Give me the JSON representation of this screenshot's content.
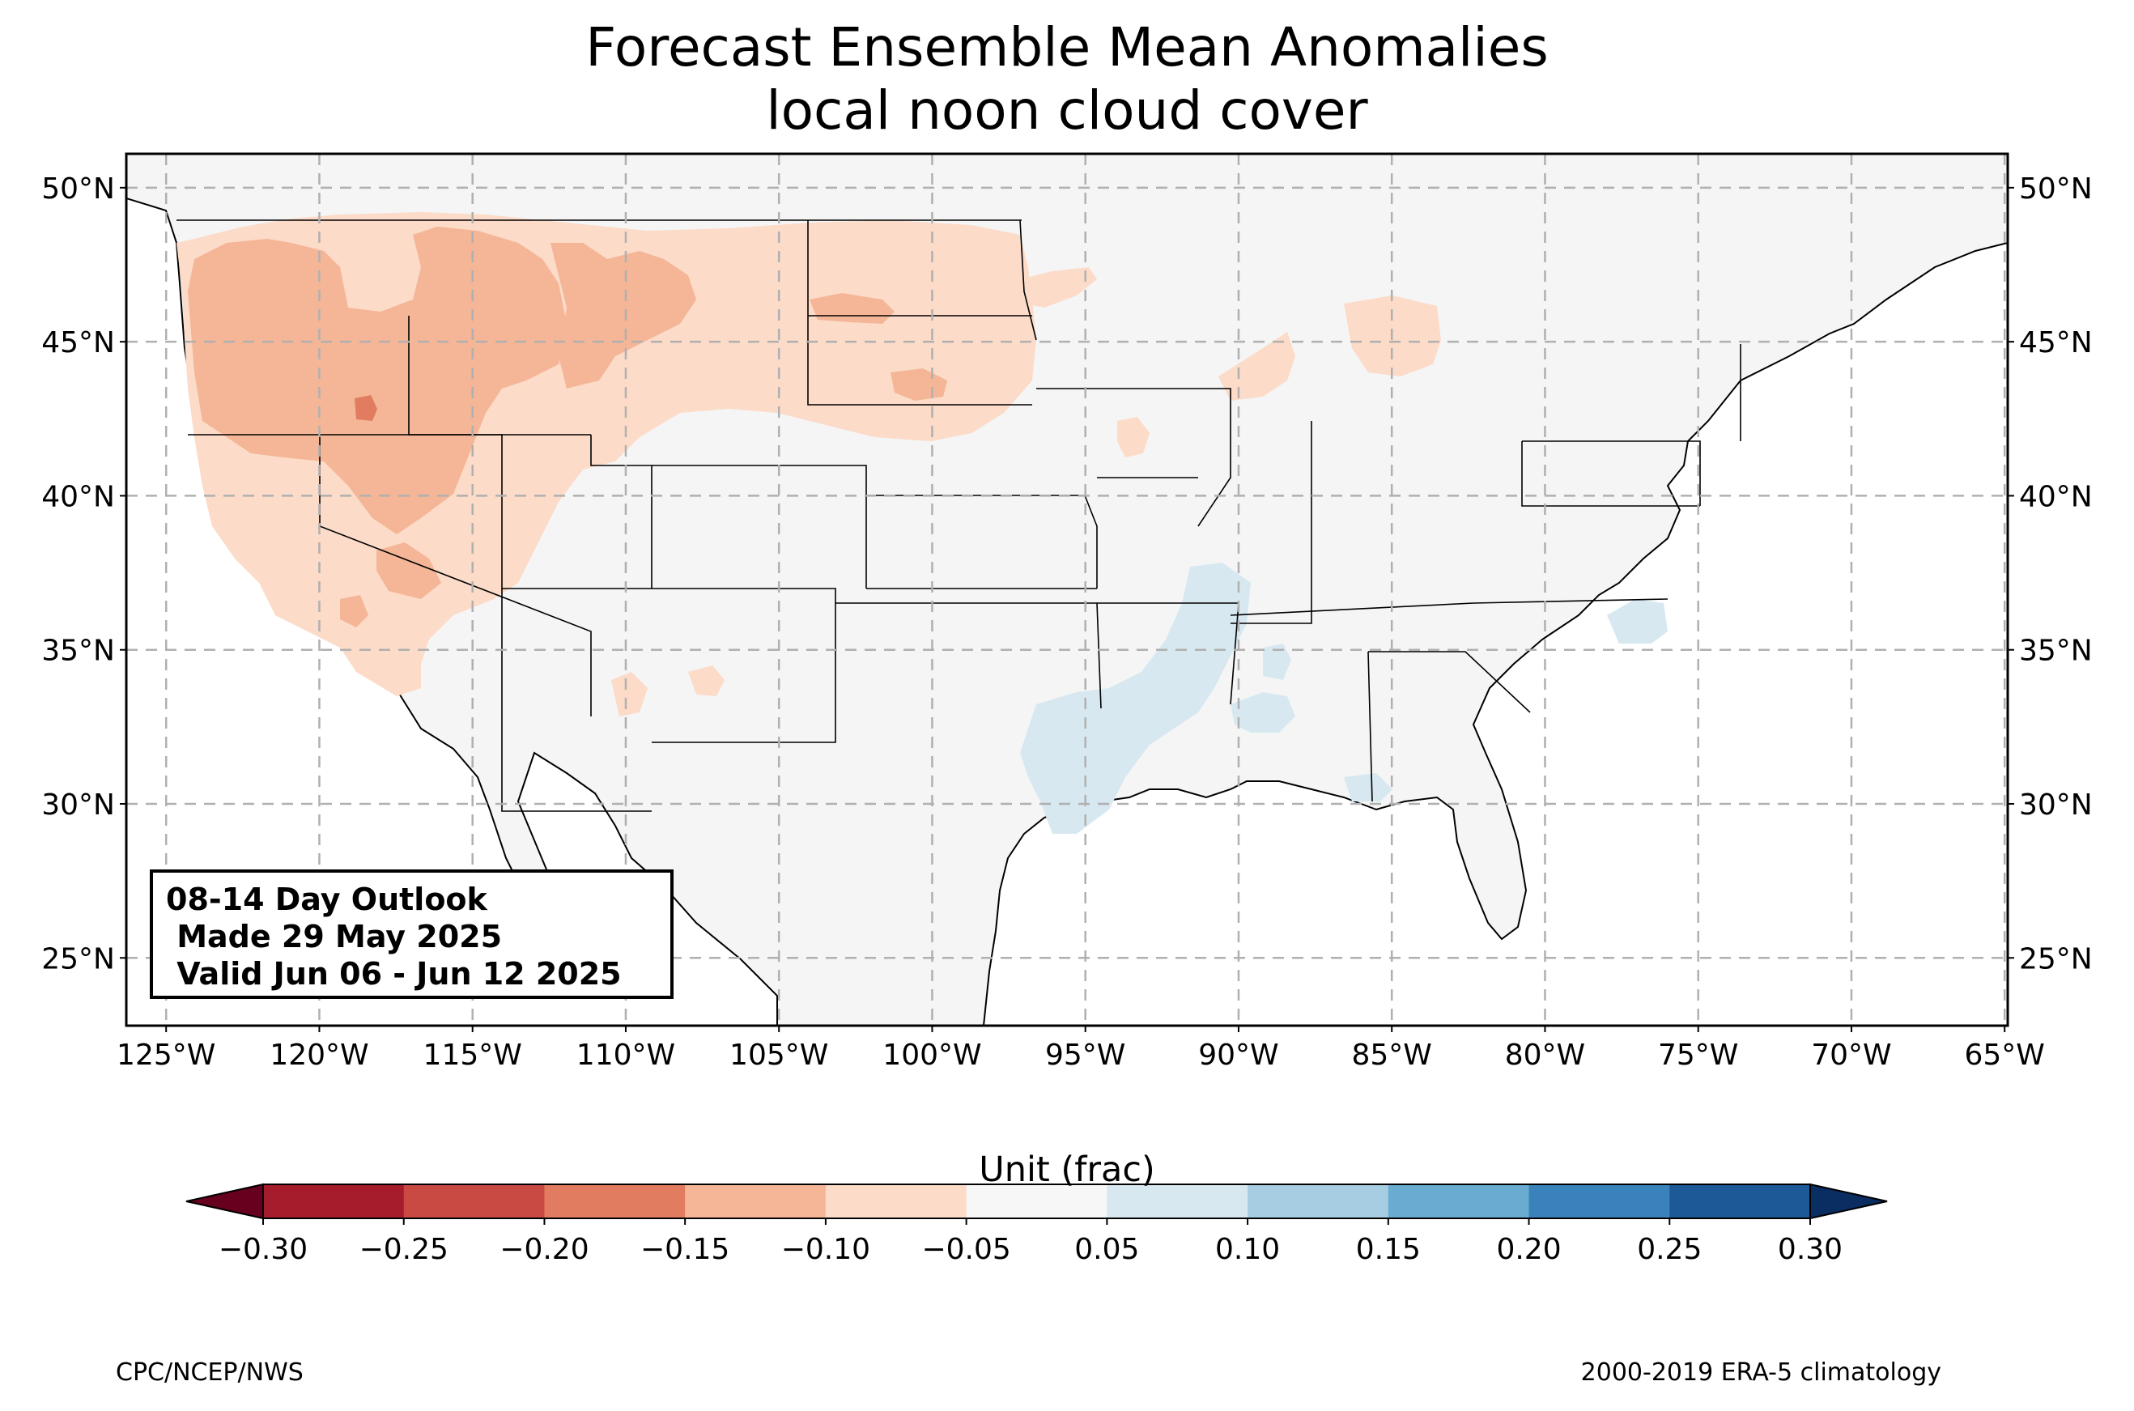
{
  "title": {
    "line1": "Forecast Ensemble Mean Anomalies",
    "line2": "local noon cloud cover"
  },
  "map": {
    "projection": "PlateCarree",
    "lon_range": [
      -126.3,
      -64.9
    ],
    "lat_range": [
      22.8,
      51.1
    ],
    "gridlines": "dashed",
    "lon_ticks": [
      {
        "value": -125,
        "label": "125°W"
      },
      {
        "value": -120,
        "label": "120°W"
      },
      {
        "value": -115,
        "label": "115°W"
      },
      {
        "value": -110,
        "label": "110°W"
      },
      {
        "value": -105,
        "label": "105°W"
      },
      {
        "value": -100,
        "label": "100°W"
      },
      {
        "value": -95,
        "label": "95°W"
      },
      {
        "value": -90,
        "label": "90°W"
      },
      {
        "value": -85,
        "label": "85°W"
      },
      {
        "value": -80,
        "label": "80°W"
      },
      {
        "value": -75,
        "label": "75°W"
      },
      {
        "value": -70,
        "label": "70°W"
      },
      {
        "value": -65,
        "label": "65°W"
      }
    ],
    "lat_ticks": [
      {
        "value": 50,
        "label": "50°N"
      },
      {
        "value": 45,
        "label": "45°N"
      },
      {
        "value": 40,
        "label": "40°N"
      },
      {
        "value": 35,
        "label": "35°N"
      },
      {
        "value": 30,
        "label": "30°N"
      },
      {
        "value": 25,
        "label": "25°N"
      }
    ],
    "anomaly_regions": [
      {
        "region": "Pacific Northwest / Great Basin",
        "level": "-0.10 to -0.15",
        "color": "#f4b696"
      },
      {
        "region": "Northern Rockies / Montana",
        "level": "-0.05 to -0.15",
        "color": "#f4b696"
      },
      {
        "region": "California / Nevada",
        "level": "-0.05 to -0.10",
        "color": "#fcdbc8"
      },
      {
        "region": "Oregon-Idaho border spot",
        "level": "-0.15 to -0.20",
        "color": "#e17c60"
      },
      {
        "region": "Dakotas",
        "level": "-0.05 to -0.15",
        "color": "#fcdbc8"
      },
      {
        "region": "Upper Midwest / Michigan",
        "level": "-0.05 to -0.10",
        "color": "#fcdbc8"
      },
      {
        "region": "East Texas / Lower Mississippi Valley",
        "level": "0.05 to 0.10",
        "color": "#d7e8f1"
      },
      {
        "region": "North Carolina coast",
        "level": "0.05 to 0.10",
        "color": "#d7e8f1"
      }
    ]
  },
  "outlook": {
    "line1": "08-14 Day Outlook",
    "line2": " Made 29 May 2025",
    "line3": " Valid Jun 06 - Jun 12 2025"
  },
  "colorbar": {
    "label": "Unit (frac)",
    "extend": "both",
    "boundaries": [
      -0.3,
      -0.25,
      -0.2,
      -0.15,
      -0.1,
      -0.05,
      0.05,
      0.1,
      0.15,
      0.2,
      0.25,
      0.3
    ],
    "tick_labels": [
      "−0.30",
      "−0.25",
      "−0.20",
      "−0.15",
      "−0.10",
      "−0.05",
      "0.05",
      "0.10",
      "0.15",
      "0.20",
      "0.25",
      "0.30"
    ],
    "colors": [
      "#a51c2c",
      "#c84a42",
      "#e17c60",
      "#f4b696",
      "#fcdbc8",
      "#f7f7f7",
      "#d7e8f1",
      "#a6cde2",
      "#6aacd1",
      "#3a83ba",
      "#1d5897"
    ],
    "under_color": "#67001f",
    "over_color": "#0a2e61"
  },
  "footer": {
    "left": "CPC/NCEP/NWS",
    "right": "2000-2019 ERA-5 climatology"
  }
}
